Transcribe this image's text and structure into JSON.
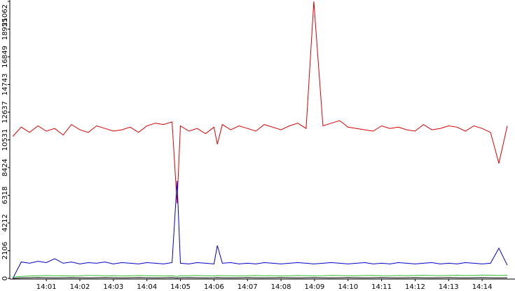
{
  "chart_data": {
    "type": "line",
    "x": [
      0,
      0.25,
      0.5,
      0.75,
      1,
      1.25,
      1.5,
      1.75,
      2,
      2.25,
      2.5,
      2.75,
      3,
      3.25,
      3.5,
      3.75,
      4,
      4.25,
      4.5,
      4.75,
      4.9,
      5,
      5.25,
      5.5,
      5.75,
      6,
      6.1,
      6.25,
      6.5,
      6.75,
      7,
      7.25,
      7.5,
      7.75,
      8,
      8.25,
      8.5,
      8.75,
      8.98,
      9.25,
      9.5,
      9.75,
      10,
      10.25,
      10.5,
      10.75,
      11,
      11.25,
      11.5,
      11.75,
      12,
      12.25,
      12.5,
      12.75,
      13,
      13.25,
      13.5,
      13.75,
      14,
      14.25,
      14.5,
      14.75
    ],
    "series": [
      {
        "color": "#dd0000",
        "values": [
          10800,
          11500,
          11100,
          11600,
          11200,
          11400,
          10900,
          11700,
          11300,
          11100,
          11600,
          11400,
          11200,
          11300,
          11500,
          11100,
          11600,
          11800,
          11700,
          11900,
          5700,
          11600,
          11200,
          11400,
          11000,
          11500,
          10200,
          11700,
          11300,
          11600,
          11400,
          11200,
          11700,
          11500,
          11300,
          11600,
          11800,
          11400,
          21062,
          11600,
          11800,
          12000,
          11500,
          11400,
          11300,
          11200,
          11600,
          11400,
          11500,
          11300,
          11200,
          11700,
          11300,
          11400,
          11600,
          11500,
          11200,
          11600,
          11400,
          11100,
          8744,
          11600
        ]
      },
      {
        "color": "#0000cc",
        "values": [
          0,
          1250,
          1150,
          1300,
          1200,
          1500,
          1150,
          1250,
          1100,
          1200,
          1150,
          1250,
          1100,
          1200,
          1150,
          1100,
          1200,
          1150,
          1100,
          1200,
          7411,
          1150,
          1100,
          1200,
          1150,
          1100,
          2500,
          1150,
          1200,
          1100,
          1150,
          1100,
          1200,
          1150,
          1100,
          1150,
          1200,
          1150,
          1100,
          1150,
          1200,
          1150,
          1100,
          1150,
          1200,
          1100,
          1150,
          1100,
          1200,
          1150,
          1100,
          1150,
          1200,
          1100,
          1150,
          1100,
          1200,
          1150,
          1100,
          1150,
          2300,
          1000
        ]
      },
      {
        "color": "#33bb33",
        "values": [
          100,
          150,
          180,
          200,
          220,
          200,
          210,
          190,
          200,
          230,
          220,
          200,
          210,
          190,
          200,
          220,
          210,
          200,
          190,
          200,
          150,
          200,
          210,
          220,
          200,
          190,
          220,
          210,
          200,
          190,
          210,
          220,
          200,
          210,
          190,
          200,
          220,
          210,
          200,
          210,
          230,
          220,
          210,
          200,
          220,
          230,
          210,
          200,
          220,
          210,
          230,
          240,
          220,
          210,
          230,
          240,
          220,
          230,
          250,
          240,
          230,
          240
        ]
      },
      {
        "color": "#000000",
        "values": [
          0,
          40,
          50,
          60,
          50,
          40,
          50,
          60,
          50,
          40,
          50,
          60,
          50,
          40,
          50,
          60,
          50,
          40,
          50,
          60,
          30,
          50,
          60,
          50,
          40,
          50,
          60,
          50,
          40,
          50,
          60,
          50,
          40,
          50,
          60,
          50,
          40,
          50,
          60,
          50,
          40,
          50,
          60,
          50,
          40,
          50,
          60,
          50,
          40,
          50,
          60,
          50,
          40,
          50,
          60,
          50,
          40,
          50,
          60,
          50,
          40,
          50
        ]
      }
    ],
    "xlim": [
      -0.09,
      14.98
    ],
    "xticks": [
      {
        "value": 1,
        "label": "14:01"
      },
      {
        "value": 2,
        "label": "14:02"
      },
      {
        "value": 3,
        "label": "14:03"
      },
      {
        "value": 4,
        "label": "14:04"
      },
      {
        "value": 5,
        "label": "14:05"
      },
      {
        "value": 6,
        "label": "14:06"
      },
      {
        "value": 7,
        "label": "14:07"
      },
      {
        "value": 8,
        "label": "14:08"
      },
      {
        "value": 9,
        "label": "14:09"
      },
      {
        "value": 10,
        "label": "14:10"
      },
      {
        "value": 11,
        "label": "14:11"
      },
      {
        "value": 12,
        "label": "14:12"
      },
      {
        "value": 13,
        "label": "14:13"
      },
      {
        "value": 14,
        "label": "14:14"
      }
    ],
    "ylim": [
      0,
      21062
    ],
    "yticks": [
      0,
      2106,
      4212,
      6318,
      8424,
      10531,
      12637,
      14743,
      16849,
      18955,
      21062
    ]
  }
}
